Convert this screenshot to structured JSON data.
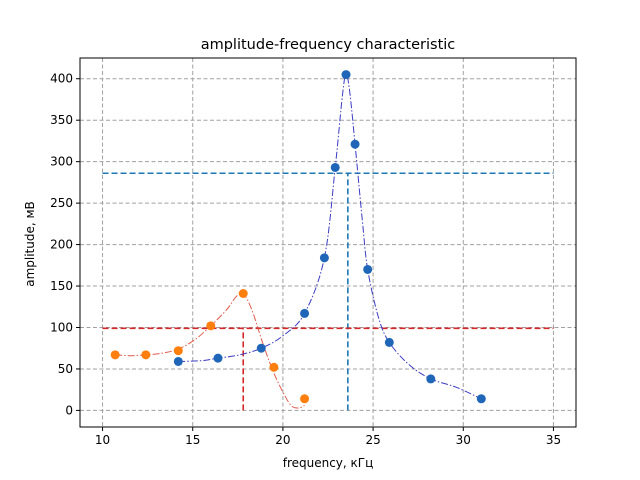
{
  "chart_data": {
    "type": "scatter",
    "title": "amplitude-frequency characteristic",
    "xlabel": "frequency, кГц",
    "ylabel": "amplitude, мВ",
    "xlim": [
      8.75,
      36.25
    ],
    "ylim": [
      -20,
      425
    ],
    "xticks": [
      10,
      15,
      20,
      25,
      30,
      35
    ],
    "yticks": [
      0,
      50,
      100,
      150,
      200,
      250,
      300,
      350,
      400
    ],
    "grid": true,
    "grid_color": "#a0a0a0",
    "series": [
      {
        "color": "#1f66b8",
        "curve_color": "#3b3bc4",
        "points": [
          {
            "x": 14.2,
            "y": 59
          },
          {
            "x": 16.4,
            "y": 63
          },
          {
            "x": 18.8,
            "y": 75
          },
          {
            "x": 21.2,
            "y": 117
          },
          {
            "x": 22.3,
            "y": 184
          },
          {
            "x": 22.9,
            "y": 293
          },
          {
            "x": 23.5,
            "y": 405
          },
          {
            "x": 24.0,
            "y": 321
          },
          {
            "x": 24.7,
            "y": 170
          },
          {
            "x": 25.9,
            "y": 82
          },
          {
            "x": 28.2,
            "y": 38
          },
          {
            "x": 31.0,
            "y": 14
          }
        ],
        "fit_curve": [
          {
            "x": 14.2,
            "y": 59
          },
          {
            "x": 15.5,
            "y": 60
          },
          {
            "x": 16.4,
            "y": 63
          },
          {
            "x": 17.6,
            "y": 67
          },
          {
            "x": 18.8,
            "y": 75
          },
          {
            "x": 20.0,
            "y": 90
          },
          {
            "x": 21.2,
            "y": 117
          },
          {
            "x": 22.3,
            "y": 184
          },
          {
            "x": 22.9,
            "y": 293
          },
          {
            "x": 23.3,
            "y": 380
          },
          {
            "x": 23.5,
            "y": 405
          },
          {
            "x": 23.7,
            "y": 385
          },
          {
            "x": 24.0,
            "y": 321
          },
          {
            "x": 24.4,
            "y": 230
          },
          {
            "x": 24.7,
            "y": 170
          },
          {
            "x": 25.3,
            "y": 112
          },
          {
            "x": 25.9,
            "y": 82
          },
          {
            "x": 27.0,
            "y": 55
          },
          {
            "x": 28.2,
            "y": 38
          },
          {
            "x": 29.6,
            "y": 28
          },
          {
            "x": 31.0,
            "y": 14
          }
        ],
        "threshold": 286,
        "threshold_color": "#1f77b4",
        "peak_x": 23.6
      },
      {
        "color": "#ff7f0e",
        "curve_color": "#e05a4a",
        "points": [
          {
            "x": 10.7,
            "y": 67
          },
          {
            "x": 12.4,
            "y": 67
          },
          {
            "x": 14.2,
            "y": 72
          },
          {
            "x": 16.0,
            "y": 102
          },
          {
            "x": 17.8,
            "y": 141
          },
          {
            "x": 19.5,
            "y": 52
          },
          {
            "x": 21.2,
            "y": 14
          }
        ],
        "fit_curve": [
          {
            "x": 10.7,
            "y": 67
          },
          {
            "x": 11.5,
            "y": 66
          },
          {
            "x": 12.4,
            "y": 67
          },
          {
            "x": 13.3,
            "y": 69
          },
          {
            "x": 14.2,
            "y": 74
          },
          {
            "x": 15.1,
            "y": 85
          },
          {
            "x": 16.0,
            "y": 102
          },
          {
            "x": 16.9,
            "y": 122
          },
          {
            "x": 17.4,
            "y": 137
          },
          {
            "x": 17.8,
            "y": 141
          },
          {
            "x": 18.3,
            "y": 120
          },
          {
            "x": 18.9,
            "y": 80
          },
          {
            "x": 19.5,
            "y": 45
          },
          {
            "x": 20.1,
            "y": 18
          },
          {
            "x": 20.5,
            "y": 5
          },
          {
            "x": 20.9,
            "y": 3
          },
          {
            "x": 21.2,
            "y": 6
          }
        ],
        "threshold": 99,
        "threshold_color": "#d62728",
        "peak_x": 17.8
      }
    ],
    "threshold_x_range": [
      10,
      35
    ]
  }
}
